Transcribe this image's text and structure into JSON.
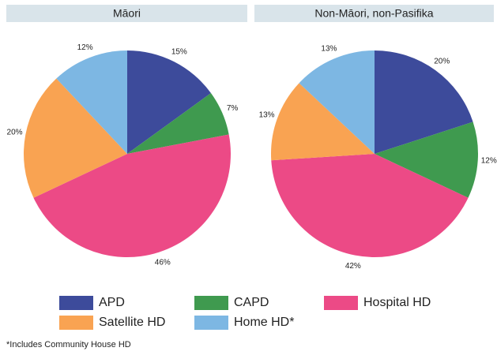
{
  "chart_data": [
    {
      "type": "pie",
      "title": "Māori",
      "categories": [
        "APD",
        "CAPD",
        "Hospital HD",
        "Satellite HD",
        "Home HD*"
      ],
      "values": [
        15,
        7,
        46,
        20,
        12
      ],
      "value_labels": [
        "15%",
        "7%",
        "46%",
        "20%",
        "12%"
      ],
      "colors": [
        "#3d4b9b",
        "#3f9a4f",
        "#ec4a86",
        "#f9a352",
        "#7db7e3"
      ]
    },
    {
      "type": "pie",
      "title": "Non-Māori, non-Pasifika",
      "categories": [
        "APD",
        "CAPD",
        "Hospital HD",
        "Satellite HD",
        "Home HD*"
      ],
      "values": [
        20,
        12,
        42,
        13,
        13
      ],
      "value_labels": [
        "20%",
        "12%",
        "42%",
        "13%",
        "13%"
      ],
      "colors": [
        "#3d4b9b",
        "#3f9a4f",
        "#ec4a86",
        "#f9a352",
        "#7db7e3"
      ]
    }
  ],
  "footnote": "*Includes Community House HD"
}
